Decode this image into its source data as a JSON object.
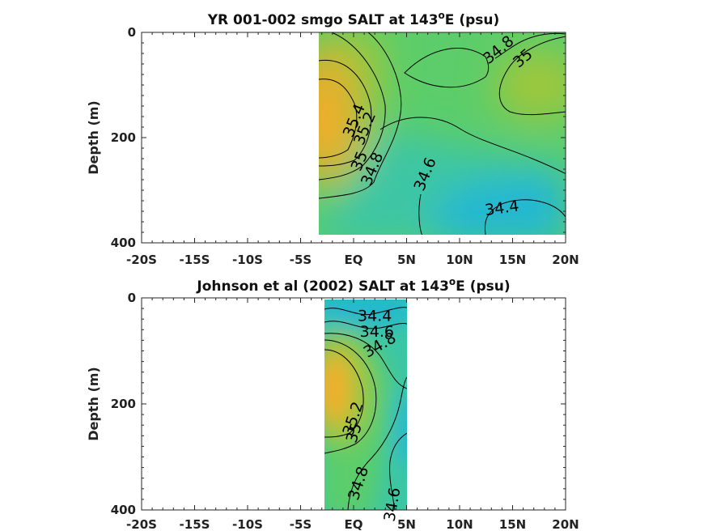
{
  "colors": {
    "low_salinity": "#22b8d3",
    "mid_low": "#3cc6a4",
    "mid": "#5ccd6a",
    "mid_high": "#9cc73c",
    "high": "#dcb02c",
    "highest": "#f6ad2c"
  },
  "chart_data": [
    {
      "type": "heatmap",
      "panel": "top",
      "title_prefix": "YR 001-002 smgo SALT at 143",
      "title_sup": "o",
      "title_suffix": "E (psu)",
      "ylabel": "Depth (m)",
      "xlabel": "",
      "xlim": [
        -20,
        20
      ],
      "ylim": [
        0,
        400
      ],
      "y_inverted": true,
      "x_ticks": [
        -20,
        -15,
        -10,
        -5,
        0,
        5,
        10,
        15,
        20
      ],
      "x_tick_labels": [
        "-20S",
        "-15S",
        "-10S",
        "-5S",
        "EQ",
        "5N",
        "10N",
        "15N",
        "20N"
      ],
      "y_ticks": [
        0,
        200,
        400
      ],
      "y_tick_labels": [
        "0",
        "200",
        "400"
      ],
      "data_extent": {
        "x": [
          -3,
          20
        ],
        "y": [
          0,
          385
        ]
      },
      "contour_levels": [
        34.4,
        34.6,
        34.8,
        35.0,
        35.2,
        35.4
      ],
      "contour_labels": [
        {
          "text": "34.8",
          "x": 13.7,
          "y": 34,
          "angle": -40
        },
        {
          "text": "35",
          "x": 16.0,
          "y": 50,
          "angle": -40
        },
        {
          "text": "35.4",
          "x": 0.1,
          "y": 168,
          "angle": -68
        },
        {
          "text": "35.2",
          "x": 1.1,
          "y": 183,
          "angle": -68
        },
        {
          "text": "35",
          "x": 0.6,
          "y": 245,
          "angle": -68
        },
        {
          "text": "34.8",
          "x": 1.8,
          "y": 260,
          "angle": -68
        },
        {
          "text": "34.6",
          "x": 6.8,
          "y": 270,
          "angle": -68
        },
        {
          "text": "34.4",
          "x": 14.0,
          "y": 335,
          "angle": -8
        }
      ]
    },
    {
      "type": "heatmap",
      "panel": "bottom",
      "title_prefix": "Johnson et al (2002) SALT at 143",
      "title_sup": "o",
      "title_suffix": "E (psu)",
      "ylabel": "Depth (m)",
      "xlabel": "",
      "xlim": [
        -20,
        20
      ],
      "ylim": [
        0,
        400
      ],
      "y_inverted": true,
      "x_ticks": [
        -20,
        -15,
        -10,
        -5,
        0,
        5,
        10,
        15,
        20
      ],
      "x_tick_labels": [
        "-20S",
        "-15S",
        "-10S",
        "-5S",
        "EQ",
        "5N",
        "10N",
        "15N",
        "20N"
      ],
      "y_ticks": [
        0,
        200,
        400
      ],
      "y_tick_labels": [
        "0",
        "200",
        "400"
      ],
      "data_extent": {
        "x": [
          -2.6,
          5.2
        ],
        "y": [
          5,
          400
        ]
      },
      "contour_levels": [
        34.4,
        34.6,
        34.8,
        35.0,
        35.2
      ],
      "contour_labels": [
        {
          "text": "34.4",
          "x": 2.0,
          "y": 35,
          "angle": 0
        },
        {
          "text": "34.6",
          "x": 2.2,
          "y": 65,
          "angle": 0
        },
        {
          "text": "34.8",
          "x": 2.5,
          "y": 90,
          "angle": -30
        },
        {
          "text": "35.2",
          "x": 0.0,
          "y": 228,
          "angle": -72
        },
        {
          "text": "35",
          "x": 0.1,
          "y": 255,
          "angle": -72
        },
        {
          "text": "34.8",
          "x": 0.5,
          "y": 350,
          "angle": -72
        },
        {
          "text": "34.6",
          "x": 3.7,
          "y": 390,
          "angle": -80
        }
      ]
    }
  ]
}
